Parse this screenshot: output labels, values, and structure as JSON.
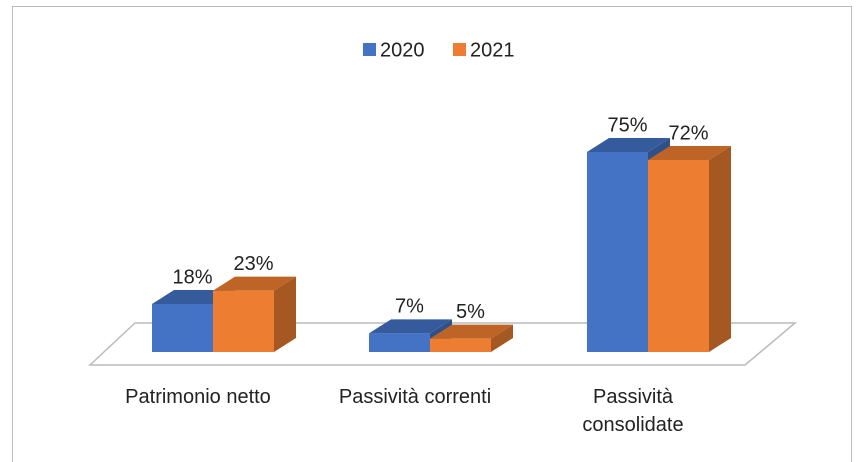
{
  "chart_data": {
    "type": "bar3d",
    "categories": [
      "Patrimonio netto",
      "Passività correnti",
      "Passività consolidate"
    ],
    "series": [
      {
        "name": "2020",
        "color": "#4472c4",
        "values": [
          18,
          7,
          75
        ],
        "value_labels": [
          "18%",
          "7%",
          "75%"
        ]
      },
      {
        "name": "2021",
        "color": "#ed7d31",
        "values": [
          23,
          5,
          72
        ],
        "value_labels": [
          "23%",
          "5%",
          "72%"
        ]
      }
    ],
    "legend": "top"
  }
}
